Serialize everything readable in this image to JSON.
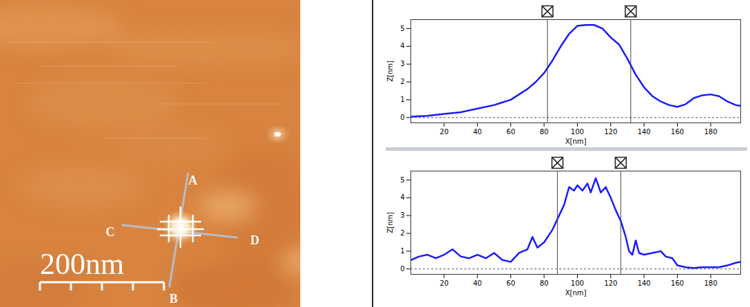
{
  "image": {
    "labels": [
      "A",
      "B",
      "C",
      "D"
    ],
    "scale_bar": "200nm"
  },
  "chart_data": [
    {
      "type": "line",
      "x_label": "X[nm]",
      "y_label": "Z[nm]",
      "color": "#1a1aff",
      "xlim": [
        0,
        198
      ],
      "ylim": [
        -0.3,
        5.5
      ],
      "xticks": [
        20,
        40,
        60,
        80,
        100,
        120,
        140,
        160,
        180
      ],
      "yticks": [
        0,
        1,
        2,
        3,
        4,
        5
      ],
      "markers": [
        82,
        132
      ],
      "x": [
        0,
        10,
        20,
        30,
        40,
        50,
        55,
        60,
        65,
        70,
        75,
        80,
        85,
        90,
        95,
        100,
        105,
        110,
        115,
        120,
        125,
        130,
        135,
        140,
        145,
        150,
        155,
        160,
        165,
        170,
        175,
        180,
        185,
        190,
        195,
        198
      ],
      "values": [
        0.05,
        0.1,
        0.2,
        0.3,
        0.5,
        0.7,
        0.85,
        1.0,
        1.3,
        1.6,
        2.0,
        2.5,
        3.2,
        4.0,
        4.7,
        5.15,
        5.2,
        5.2,
        5.0,
        4.5,
        4.1,
        3.3,
        2.4,
        1.7,
        1.2,
        0.9,
        0.7,
        0.6,
        0.75,
        1.1,
        1.25,
        1.3,
        1.2,
        0.9,
        0.7,
        0.65
      ]
    },
    {
      "type": "line",
      "x_label": "X[nm]",
      "y_label": "Z[nm]",
      "color": "#1a1aff",
      "xlim": [
        0,
        198
      ],
      "ylim": [
        -0.3,
        5.5
      ],
      "xticks": [
        20,
        40,
        60,
        80,
        100,
        120,
        140,
        160,
        180
      ],
      "yticks": [
        0,
        1,
        2,
        3,
        4,
        5
      ],
      "markers": [
        88,
        126
      ],
      "x": [
        0,
        5,
        10,
        15,
        20,
        25,
        30,
        35,
        40,
        45,
        50,
        55,
        60,
        65,
        70,
        73,
        76,
        80,
        85,
        88,
        92,
        95,
        98,
        100,
        103,
        106,
        108,
        111,
        114,
        117,
        120,
        123,
        126,
        129,
        131,
        133,
        135,
        137,
        140,
        145,
        150,
        153,
        157,
        160,
        165,
        170,
        175,
        180,
        185,
        190,
        195,
        198
      ],
      "values": [
        0.5,
        0.7,
        0.8,
        0.6,
        0.8,
        1.1,
        0.7,
        0.6,
        0.8,
        0.6,
        0.9,
        0.5,
        0.4,
        0.9,
        1.1,
        1.8,
        1.2,
        1.5,
        2.2,
        2.8,
        3.6,
        4.6,
        4.4,
        4.7,
        4.4,
        4.8,
        4.3,
        5.1,
        4.3,
        4.6,
        4.0,
        3.3,
        2.7,
        1.8,
        1.0,
        0.8,
        1.6,
        0.9,
        0.8,
        0.9,
        1.0,
        0.7,
        0.6,
        0.2,
        0.1,
        0.05,
        0.1,
        0.1,
        0.1,
        0.2,
        0.35,
        0.4
      ]
    }
  ]
}
